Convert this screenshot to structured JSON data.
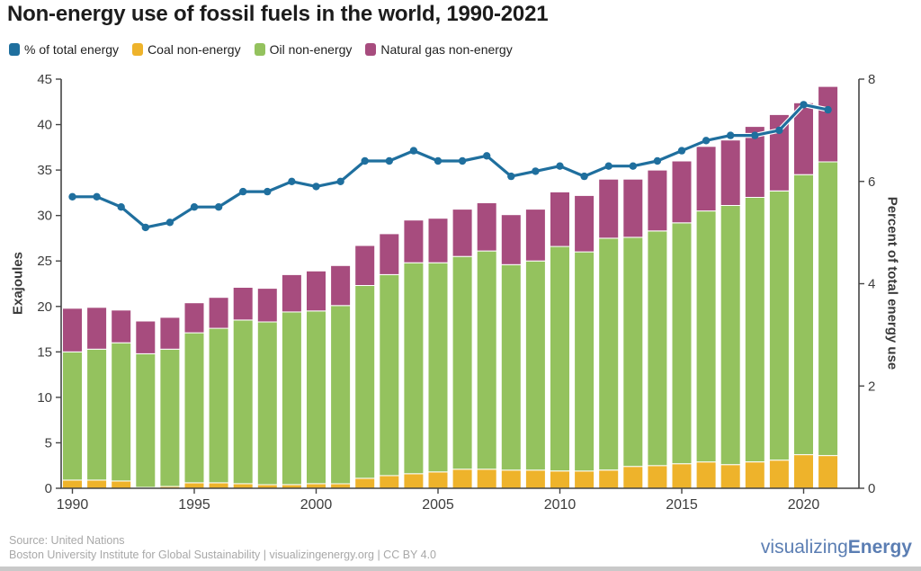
{
  "title": "Non-energy use of fossil fuels in the world, 1990-2021",
  "legend": [
    {
      "label": "% of total energy",
      "color": "#1f6f9e"
    },
    {
      "label": "Coal non-energy",
      "color": "#eeb32b"
    },
    {
      "label": "Oil non-energy",
      "color": "#94c25e"
    },
    {
      "label": "Natural gas non-energy",
      "color": "#a74c7e"
    }
  ],
  "footer": {
    "source": "Source: United Nations",
    "attribution": "Boston University Institute for Global Sustainability | visualizingenergy.org | CC BY 4.0"
  },
  "logo": {
    "regular": "visualizing",
    "bold": "Energy",
    "color": "#5b7eb3"
  },
  "chart_data": {
    "type": "bar",
    "subtype": "stacked-bars-with-line-overlay",
    "title": "Non-energy use of fossil fuels in the world, 1990-2021",
    "categories": [
      1990,
      1991,
      1992,
      1993,
      1994,
      1995,
      1996,
      1997,
      1998,
      1999,
      2000,
      2001,
      2002,
      2003,
      2004,
      2005,
      2006,
      2007,
      2008,
      2009,
      2010,
      2011,
      2012,
      2013,
      2014,
      2015,
      2016,
      2017,
      2018,
      2019,
      2020,
      2021
    ],
    "series": [
      {
        "name": "Coal non-energy",
        "color": "#eeb32b",
        "unit": "EJ",
        "values": [
          0.9,
          0.9,
          0.8,
          0.1,
          0.2,
          0.6,
          0.6,
          0.5,
          0.4,
          0.4,
          0.5,
          0.5,
          1.1,
          1.4,
          1.6,
          1.8,
          2.1,
          2.1,
          2.0,
          2.0,
          1.9,
          1.9,
          2.0,
          2.4,
          2.5,
          2.7,
          2.9,
          2.6,
          2.9,
          3.1,
          3.7,
          3.6
        ]
      },
      {
        "name": "Oil non-energy",
        "color": "#94c25e",
        "unit": "EJ",
        "values": [
          14.1,
          14.4,
          15.2,
          14.7,
          15.1,
          16.5,
          17.0,
          18.0,
          17.9,
          19.0,
          19.0,
          19.6,
          21.2,
          22.1,
          23.2,
          23.0,
          23.4,
          24.0,
          22.6,
          23.0,
          24.7,
          24.1,
          25.5,
          25.2,
          25.8,
          26.5,
          27.6,
          28.5,
          29.1,
          29.6,
          30.8,
          32.3
        ]
      },
      {
        "name": "Natural gas non-energy",
        "color": "#a74c7e",
        "unit": "EJ",
        "values": [
          4.8,
          4.6,
          3.6,
          3.6,
          3.5,
          3.3,
          3.4,
          3.6,
          3.7,
          4.1,
          4.4,
          4.4,
          4.4,
          4.5,
          4.7,
          4.9,
          5.2,
          5.3,
          5.5,
          5.7,
          6.0,
          6.2,
          6.5,
          6.4,
          6.7,
          6.8,
          7.1,
          7.2,
          7.8,
          8.4,
          7.9,
          8.3
        ]
      }
    ],
    "line": {
      "name": "% of total energy",
      "color": "#1f6f9e",
      "axis": "right",
      "unit": "%",
      "values": [
        5.7,
        5.7,
        5.5,
        5.1,
        5.2,
        5.5,
        5.5,
        5.8,
        5.8,
        6.0,
        5.9,
        6.0,
        6.4,
        6.4,
        6.6,
        6.4,
        6.4,
        6.5,
        6.1,
        6.2,
        6.3,
        6.1,
        6.3,
        6.3,
        6.4,
        6.6,
        6.8,
        6.9,
        6.9,
        7.0,
        7.5,
        7.4
      ]
    },
    "left_axis": {
      "label": "Exajoules",
      "range": [
        0,
        45
      ],
      "ticks": [
        0,
        5,
        10,
        15,
        20,
        25,
        30,
        35,
        40,
        45
      ]
    },
    "right_axis": {
      "label": "Percent of total energy use",
      "range": [
        0,
        8
      ],
      "ticks": [
        0,
        2,
        4,
        6,
        8
      ]
    },
    "x_ticks": [
      1990,
      1995,
      2000,
      2005,
      2010,
      2015,
      2020
    ],
    "grid": false,
    "legend_position": "top-left"
  }
}
